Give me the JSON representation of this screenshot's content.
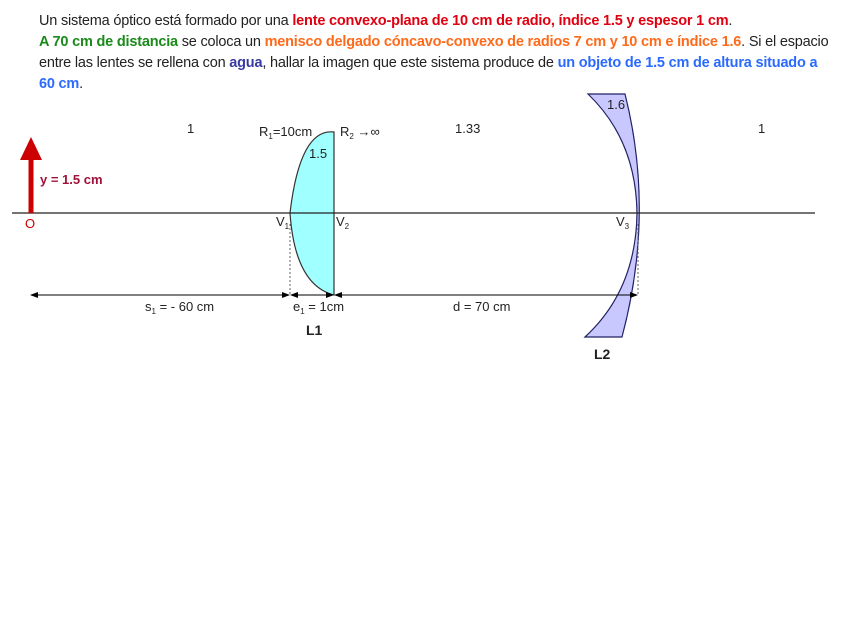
{
  "problem": {
    "p1": "Un sistema óptico está formado por una ",
    "p2": "lente convexo-plana de 10 cm de radio, índice 1.5 y espesor 1 cm",
    "p3": ". ",
    "p4": "A 70 cm de distancia",
    "p5": " se coloca un ",
    "p6": "menisco delgado cóncavo-convexo de radios 7 cm y 10 cm e índice 1.6",
    "p7": ". Si el espacio entre las lentes se rellena con ",
    "p8": "agua",
    "p9": ", hallar la imagen que este sistema produce de ",
    "p10": "un objeto de 1.5 cm de altura situado a 60 cm",
    "p11": "."
  },
  "diagram": {
    "object_label": "y = 1.5 cm",
    "origin_label": "O",
    "n_left": "1",
    "n_water": "1.33",
    "n_right": "1",
    "n_lens1": "1.5",
    "n_lens2": "1.6",
    "r1_label": "R",
    "r1_sub": "1",
    "r1_value": "=10cm",
    "r2_label": "R",
    "r2_sub": "2",
    "r2_value": " →∞",
    "v1": "V",
    "v1_sub": "1",
    "v2": "V",
    "v2_sub": "2",
    "v3": "V",
    "v3_sub": "3",
    "s1_label": "s",
    "s1_sub": "1",
    "s1_value": " = - 60 cm",
    "e1_label": "e",
    "e1_sub": "1",
    "e1_value": " = 1cm",
    "d_label": "d = 70 cm",
    "lens1_name": "L1",
    "lens2_name": "L2",
    "colors": {
      "lens1_fill": "#a0ffff",
      "lens2_fill": "#c8c8ff",
      "object": "#cc0000"
    }
  }
}
